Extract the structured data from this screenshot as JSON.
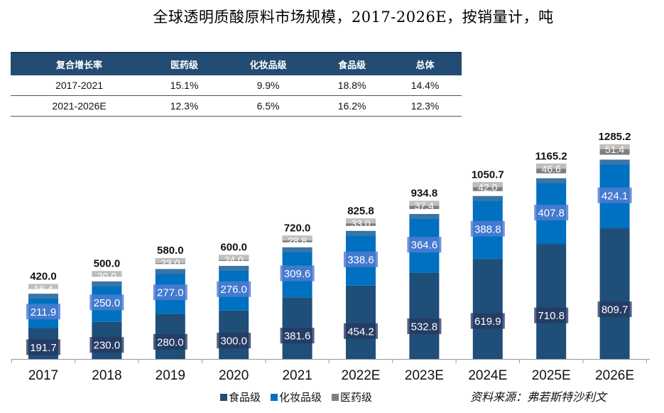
{
  "title": "全球透明质酸原料市场规模，2017-2026E，按销量计，吨",
  "cagr_table": {
    "headers": [
      "复合增长率",
      "医药级",
      "化妆品级",
      "食品级",
      "总体"
    ],
    "rows": [
      [
        "2017-2021",
        "15.1%",
        "9.9%",
        "18.8%",
        "14.4%"
      ],
      [
        "2021-2026E",
        "12.3%",
        "6.5%",
        "16.2%",
        "12.3%"
      ]
    ]
  },
  "chart_data": {
    "type": "bar",
    "stacked": true,
    "title": "全球透明质酸原料市场规模，2017-2026E，按销量计，吨",
    "xlabel": "",
    "ylabel": "",
    "ylim": [
      0,
      1285.2
    ],
    "grid": false,
    "legend_position": "bottom",
    "categories": [
      "2017",
      "2018",
      "2019",
      "2020",
      "2021",
      "2022E",
      "2023E",
      "2024E",
      "2025E",
      "2026E"
    ],
    "series": [
      {
        "name": "食品级",
        "color": "#1f4e79",
        "values": [
          191.7,
          230.0,
          280.0,
          300.0,
          381.6,
          454.2,
          532.8,
          619.9,
          710.8,
          809.7
        ]
      },
      {
        "name": "化妆品级",
        "color": "#0070c0",
        "values": [
          211.9,
          250.0,
          277.0,
          276.0,
          309.6,
          338.6,
          364.6,
          388.8,
          407.8,
          424.1
        ]
      },
      {
        "name": "医药级",
        "color": "#808080",
        "values": [
          16.4,
          20.0,
          23.0,
          24.0,
          28.8,
          33.0,
          37.4,
          42.0,
          46.6,
          51.4
        ]
      }
    ],
    "totals": [
      420.0,
      500.0,
      580.0,
      600.0,
      720.0,
      825.8,
      934.8,
      1050.7,
      1165.2,
      1285.2
    ]
  },
  "legend": [
    {
      "label": "食品级",
      "color": "#1f4e79"
    },
    {
      "label": "化妆品级",
      "color": "#0070c0"
    },
    {
      "label": "医药级",
      "color": "#808080"
    }
  ],
  "source": "资料来源：弗若斯特沙利文"
}
